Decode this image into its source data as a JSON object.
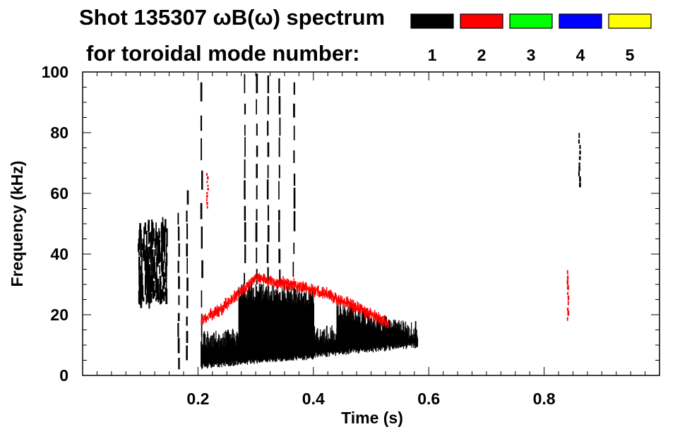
{
  "chart_data": {
    "type": "heatmap",
    "title_line1": "Shot 135307 ωB(ω) spectrum",
    "title_line2": "for toroidal mode number:",
    "xlabel": "Time (s)",
    "ylabel": "Frequency (kHz)",
    "xlim": [
      0.0,
      1.0
    ],
    "ylim": [
      0,
      100
    ],
    "xticks": [
      0.2,
      0.4,
      0.6,
      0.8
    ],
    "xtick_labels": [
      "0.2",
      "0.4",
      "0.6",
      "0.8"
    ],
    "yticks": [
      0,
      20,
      40,
      60,
      80,
      100
    ],
    "ytick_labels": [
      "0",
      "20",
      "40",
      "60",
      "80",
      "100"
    ],
    "legend": [
      {
        "label": "1",
        "color": "#000000"
      },
      {
        "label": "2",
        "color": "#ff0000"
      },
      {
        "label": "3",
        "color": "#00ff00"
      },
      {
        "label": "4",
        "color": "#0000ff"
      },
      {
        "label": "5",
        "color": "#ffff00"
      }
    ],
    "features": [
      {
        "mode": 1,
        "type": "blob",
        "t": [
          0.095,
          0.145
        ],
        "f": [
          25,
          50
        ]
      },
      {
        "mode": 1,
        "type": "band",
        "t": [
          0.205,
          0.58
        ],
        "f_low_start": 3,
        "f_high_start": 12,
        "f_low_end": 10,
        "f_high_end": 15
      },
      {
        "mode": 1,
        "type": "band",
        "t": [
          0.27,
          0.4
        ],
        "f_low_start": 5,
        "f_high_start": 28,
        "f_low_end": 6,
        "f_high_end": 26
      },
      {
        "mode": 1,
        "type": "band",
        "t": [
          0.44,
          0.56
        ],
        "f_low_start": 8,
        "f_high_start": 22,
        "f_low_end": 12,
        "f_high_end": 15
      },
      {
        "mode": 1,
        "type": "spike",
        "t": 0.165,
        "f": [
          2,
          55
        ]
      },
      {
        "mode": 1,
        "type": "spike",
        "t": 0.18,
        "f": [
          5,
          62
        ]
      },
      {
        "mode": 1,
        "type": "spike",
        "t": 0.205,
        "f": [
          3,
          100
        ]
      },
      {
        "mode": 1,
        "type": "spike",
        "t": 0.28,
        "f": [
          30,
          100
        ]
      },
      {
        "mode": 1,
        "type": "spike",
        "t": 0.3,
        "f": [
          30,
          100
        ]
      },
      {
        "mode": 1,
        "type": "spike",
        "t": 0.32,
        "f": [
          30,
          100
        ]
      },
      {
        "mode": 1,
        "type": "spike",
        "t": 0.34,
        "f": [
          30,
          100
        ]
      },
      {
        "mode": 1,
        "type": "spike",
        "t": 0.365,
        "f": [
          25,
          100
        ]
      },
      {
        "mode": 1,
        "type": "spike",
        "t": 0.86,
        "f": [
          62,
          80
        ]
      },
      {
        "mode": 2,
        "type": "curve",
        "t": [
          0.205,
          0.24,
          0.3,
          0.36,
          0.42,
          0.48,
          0.53
        ],
        "f": [
          18,
          22,
          32,
          30,
          27,
          22,
          17
        ]
      },
      {
        "mode": 2,
        "type": "spike",
        "t": 0.84,
        "f": [
          18,
          35
        ]
      },
      {
        "mode": 2,
        "type": "spike",
        "t": 0.215,
        "f": [
          55,
          67
        ]
      }
    ]
  }
}
